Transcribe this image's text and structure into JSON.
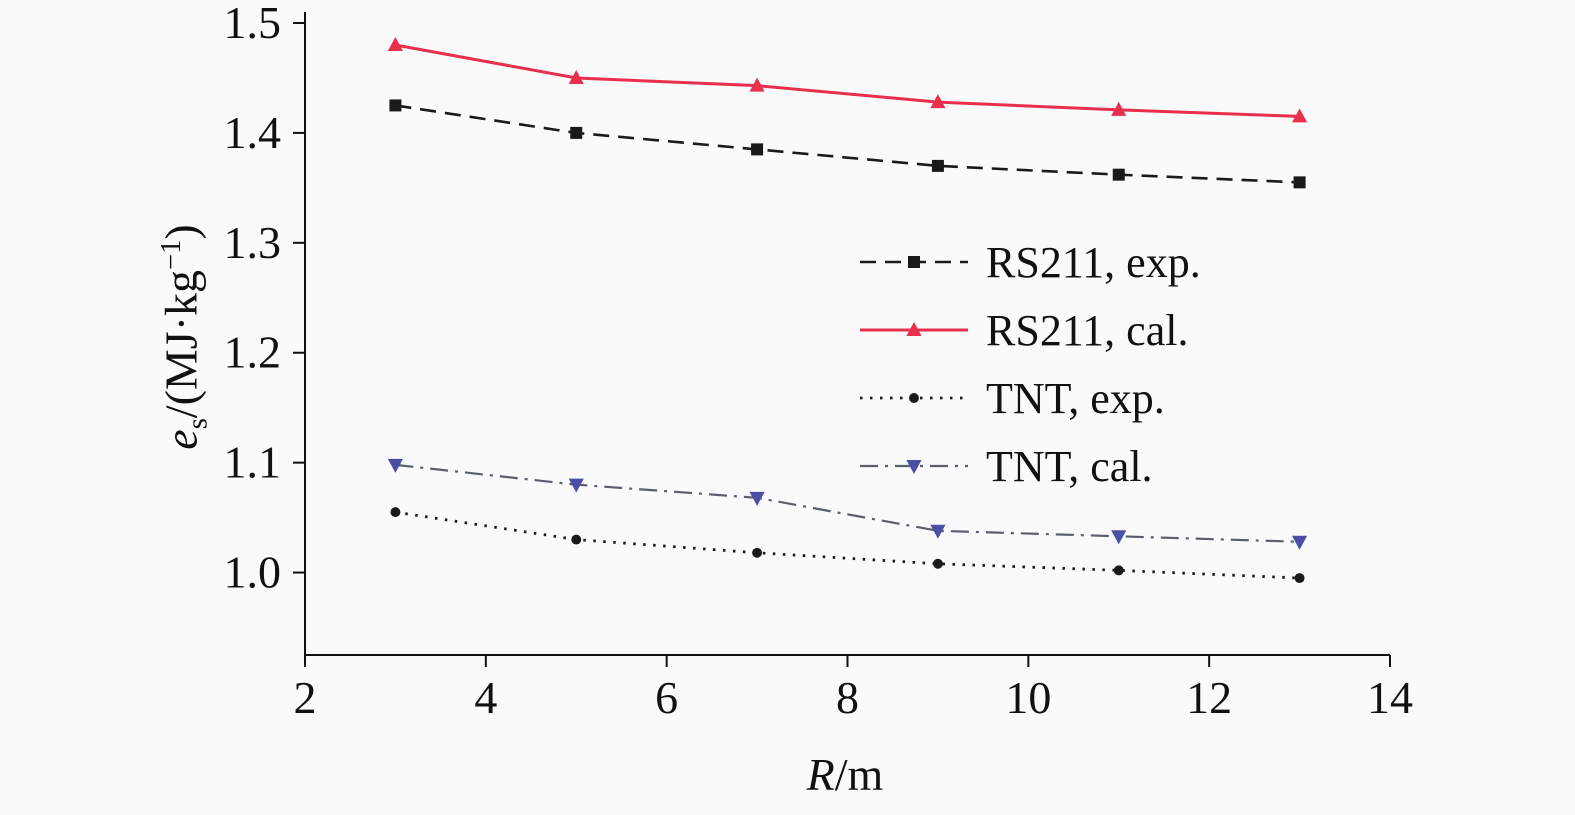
{
  "chart_data": {
    "type": "line",
    "title": "",
    "x": [
      3,
      5,
      7,
      9,
      11,
      13
    ],
    "series": [
      {
        "name": "RS211, exp.",
        "values": [
          1.425,
          1.4,
          1.385,
          1.37,
          1.362,
          1.355
        ],
        "color": "#1a1a1a",
        "line": "dashed",
        "width": 2.6,
        "marker": "square",
        "marker_color": "#1a1a1a"
      },
      {
        "name": "RS211, cal.",
        "values": [
          1.48,
          1.45,
          1.443,
          1.428,
          1.421,
          1.415
        ],
        "color": "#e8304e",
        "line": "solid",
        "width": 3,
        "marker": "triangle-up",
        "marker_color": "#e8304e"
      },
      {
        "name": "TNT, exp.",
        "values": [
          1.055,
          1.03,
          1.018,
          1.008,
          1.002,
          0.995
        ],
        "color": "#1a1a1a",
        "line": "dotted",
        "width": 2.8,
        "marker": "circle",
        "marker_color": "#1a1a1a"
      },
      {
        "name": "TNT, cal.",
        "values": [
          1.098,
          1.08,
          1.068,
          1.038,
          1.033,
          1.028
        ],
        "color": "#5a5f6b",
        "line": "dashdot",
        "width": 2.2,
        "marker": "triangle-down",
        "marker_color": "#4b4fa6"
      }
    ],
    "xlim": [
      2,
      14
    ],
    "ylim": [
      0.925,
      1.51
    ],
    "xticks": [
      2,
      4,
      6,
      8,
      10,
      12,
      14
    ],
    "xtick_labels": [
      "2",
      "4",
      "6",
      "8",
      "10",
      "12",
      "14"
    ],
    "yticks": [
      1.0,
      1.1,
      1.2,
      1.3,
      1.4,
      1.5
    ],
    "ytick_labels": [
      "1.0",
      "1.1",
      "1.2",
      "1.3",
      "1.4",
      "1.5"
    ],
    "grid": false,
    "legend_position": "center-right",
    "axis_color": "#111111"
  },
  "axes": {
    "xlabel": {
      "var": "R",
      "rest": "/m"
    },
    "ylabel": {
      "var": "e",
      "sub": "s",
      "mid": "/(MJ·kg",
      "sup": "−1",
      "end": ")"
    }
  }
}
